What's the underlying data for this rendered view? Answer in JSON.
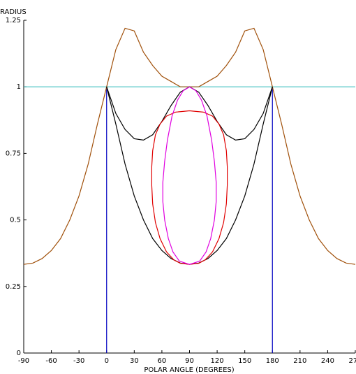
{
  "chart_data": {
    "type": "line",
    "ylabel": "RADIUS",
    "xlabel": "POLAR ANGLE (DEGREES)",
    "xlim": [
      -90,
      270
    ],
    "xticks": [
      -90,
      -60,
      -30,
      0,
      30,
      60,
      90,
      120,
      150,
      180,
      210,
      240,
      270
    ],
    "ylim": [
      0,
      1.25
    ],
    "yticks": [
      0,
      0.25,
      0.5,
      0.75,
      1,
      1.25
    ],
    "grid": false,
    "series": [
      {
        "color": "#40c0c0",
        "x": [
          -90,
          270
        ],
        "values": [
          1,
          1
        ]
      },
      {
        "color": "#0000c0",
        "x": [
          0,
          0
        ],
        "values": [
          0,
          1
        ]
      },
      {
        "color": "#0000c0",
        "x": [
          180,
          180
        ],
        "values": [
          0,
          1
        ]
      },
      {
        "color": "#a0500a",
        "x": [
          -90,
          -80,
          -70,
          -60,
          -50,
          -40,
          -30,
          -20,
          -10,
          0,
          10,
          20,
          30,
          40,
          50,
          60,
          70,
          80,
          90,
          100,
          110,
          120,
          130,
          140,
          150,
          160,
          170,
          180,
          190,
          200,
          210,
          220,
          230,
          240,
          250,
          260,
          270
        ],
        "values": [
          0.333,
          0.338,
          0.355,
          0.385,
          0.43,
          0.5,
          0.59,
          0.71,
          0.86,
          1.0,
          1.14,
          1.22,
          1.21,
          1.13,
          1.08,
          1.04,
          1.02,
          1.0,
          1.0,
          1.0,
          1.02,
          1.04,
          1.08,
          1.13,
          1.21,
          1.22,
          1.14,
          1.0,
          0.86,
          0.71,
          0.59,
          0.5,
          0.43,
          0.385,
          0.355,
          0.338,
          0.333
        ]
      },
      {
        "color": "#000000",
        "x": [
          0,
          10,
          20,
          30,
          40,
          50,
          60,
          70,
          80,
          90,
          100,
          110,
          120,
          130,
          140,
          150,
          160,
          170,
          180
        ],
        "values": [
          1.0,
          0.9,
          0.84,
          0.805,
          0.8,
          0.82,
          0.87,
          0.93,
          0.98,
          1.0,
          0.98,
          0.93,
          0.87,
          0.82,
          0.8,
          0.805,
          0.84,
          0.9,
          1.0
        ]
      },
      {
        "color": "#000000",
        "x": [
          0,
          10,
          20,
          30,
          40,
          50,
          60,
          70,
          80,
          90,
          100,
          110,
          120,
          130,
          140,
          150,
          160,
          170,
          180
        ],
        "values": [
          1.0,
          0.86,
          0.71,
          0.59,
          0.5,
          0.43,
          0.385,
          0.355,
          0.338,
          0.333,
          0.338,
          0.355,
          0.385,
          0.43,
          0.5,
          0.59,
          0.71,
          0.86,
          1.0
        ]
      },
      {
        "color": "#e00000",
        "x": [
          90,
          105,
          115,
          122,
          127,
          130,
          131,
          131,
          130,
          127,
          122,
          115,
          107,
          100,
          90,
          80,
          73,
          65,
          58,
          53,
          50,
          49,
          49,
          50,
          53,
          58,
          65,
          75,
          90
        ],
        "values": [
          0.91,
          0.905,
          0.89,
          0.86,
          0.82,
          0.76,
          0.7,
          0.63,
          0.56,
          0.49,
          0.43,
          0.38,
          0.35,
          0.337,
          0.333,
          0.337,
          0.35,
          0.38,
          0.43,
          0.49,
          0.56,
          0.63,
          0.7,
          0.76,
          0.82,
          0.86,
          0.89,
          0.905,
          0.91
        ]
      },
      {
        "color": "#e000e0",
        "x": [
          90,
          97,
          103,
          109,
          114,
          117,
          119,
          119,
          117,
          113,
          108,
          101,
          90,
          79,
          72,
          67,
          63,
          61,
          61,
          63,
          66,
          71,
          77,
          83,
          90
        ],
        "values": [
          1.0,
          0.985,
          0.95,
          0.89,
          0.8,
          0.72,
          0.64,
          0.57,
          0.5,
          0.43,
          0.38,
          0.345,
          0.333,
          0.345,
          0.38,
          0.43,
          0.5,
          0.57,
          0.64,
          0.72,
          0.8,
          0.89,
          0.95,
          0.985,
          1.0
        ]
      }
    ]
  }
}
